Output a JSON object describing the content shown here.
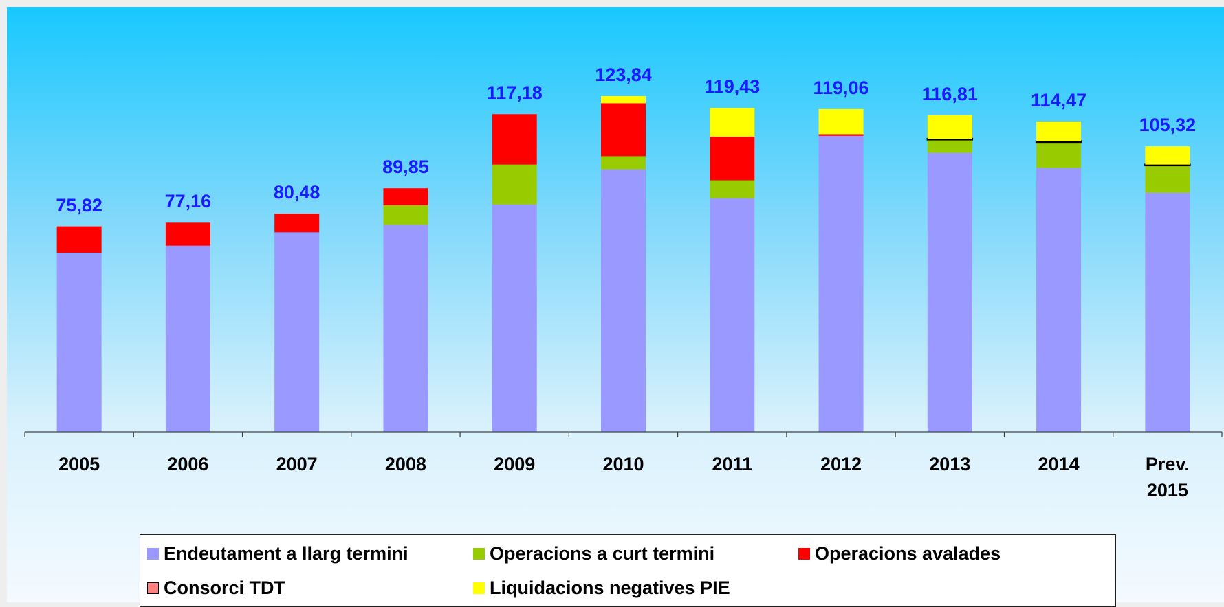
{
  "chart_data": {
    "type": "stacked-bar",
    "categories": [
      "2005",
      "2006",
      "2007",
      "2008",
      "2009",
      "2010",
      "2011",
      "2012",
      "2013",
      "2014",
      "Prev. 2015"
    ],
    "series": [
      {
        "name": "Endeutament a llarg termini",
        "color": "#9999ff",
        "values": [
          66.1,
          68.7,
          73.6,
          76.4,
          83.9,
          96.8,
          86.2,
          109.2,
          102.9,
          97.4,
          88.2
        ]
      },
      {
        "name": "Operacions a curt termini",
        "color": "#99cc00",
        "values": [
          0,
          0,
          0,
          7.2,
          14.7,
          4.9,
          6.6,
          0,
          4.9,
          9.5,
          10.1
        ]
      },
      {
        "name": "Operacions avalades",
        "color": "#ff0000",
        "values": [
          9.72,
          8.46,
          6.88,
          6.25,
          18.58,
          19.5,
          16.1,
          0.6,
          0,
          0,
          0
        ]
      },
      {
        "name": "Consorci TDT",
        "color": "#ff8080",
        "values": [
          0,
          0,
          0,
          0,
          0,
          0,
          0,
          0,
          0.3,
          0.3,
          0.3
        ]
      },
      {
        "name": "Liquidacions negatives PIE",
        "color": "#ffff00",
        "values": [
          0,
          0,
          0,
          0,
          0,
          2.64,
          10.53,
          9.26,
          8.71,
          7.27,
          6.72
        ]
      }
    ],
    "totals": [
      75.82,
      77.16,
      80.48,
      89.85,
      117.18,
      123.84,
      119.43,
      119.06,
      116.81,
      114.47,
      105.32
    ],
    "total_labels": [
      "75,82",
      "77,16",
      "80,48",
      "89,85",
      "117,18",
      "123,84",
      "119,43",
      "119,06",
      "116,81",
      "114,47",
      "105,32"
    ],
    "ylim": [
      0,
      156
    ],
    "legend": "bottom"
  }
}
